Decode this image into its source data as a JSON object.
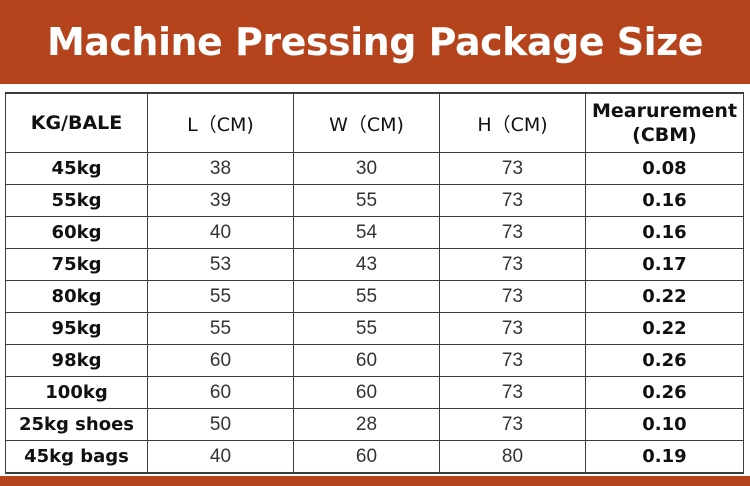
{
  "title": "Machine Pressing Package Size",
  "colors": {
    "accent": "#b5441d",
    "border": "#3c3c3c"
  },
  "table": {
    "headers": [
      "KG/BALE",
      "L（CM)",
      "W（CM)",
      "H（CM)",
      "Mearurement (CBM)"
    ],
    "header_measure_line1": "Mearurement",
    "header_measure_line2": "(CBM)",
    "rows": [
      [
        "45kg",
        "38",
        "30",
        "73",
        "0.08"
      ],
      [
        "55kg",
        "39",
        "55",
        "73",
        "0.16"
      ],
      [
        "60kg",
        "40",
        "54",
        "73",
        "0.16"
      ],
      [
        "75kg",
        "53",
        "43",
        "73",
        "0.17"
      ],
      [
        "80kg",
        "55",
        "55",
        "73",
        "0.22"
      ],
      [
        "95kg",
        "55",
        "55",
        "73",
        "0.22"
      ],
      [
        "98kg",
        "60",
        "60",
        "73",
        "0.26"
      ],
      [
        "100kg",
        "60",
        "60",
        "73",
        "0.26"
      ],
      [
        "25kg shoes",
        "50",
        "28",
        "73",
        "0.10"
      ],
      [
        "45kg bags",
        "40",
        "60",
        "80",
        "0.19"
      ]
    ]
  }
}
